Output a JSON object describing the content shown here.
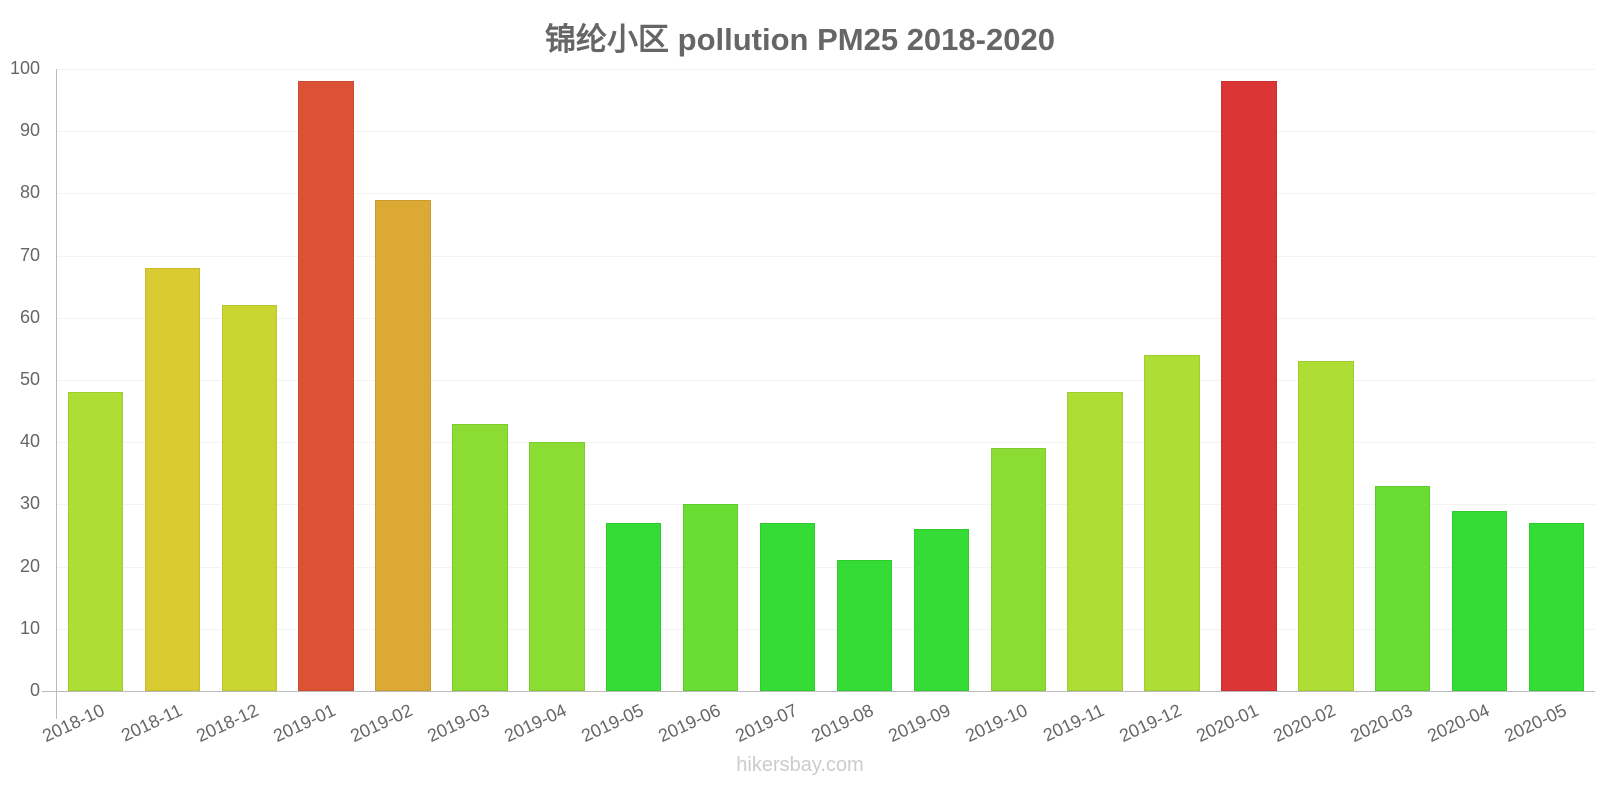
{
  "chart_data": {
    "type": "bar",
    "title": "锦纶小区 pollution PM25 2018-2020",
    "xlabel": "",
    "ylabel": "",
    "ylim": [
      0,
      100
    ],
    "yticks": [
      0,
      10,
      20,
      30,
      40,
      50,
      60,
      70,
      80,
      90,
      100
    ],
    "grid": true,
    "legend": null,
    "categories": [
      "2018-10",
      "2018-11",
      "2018-12",
      "2019-01",
      "2019-02",
      "2019-03",
      "2019-04",
      "2019-05",
      "2019-06",
      "2019-07",
      "2019-08",
      "2019-09",
      "2019-10",
      "2019-11",
      "2019-12",
      "2020-01",
      "2020-02",
      "2020-03",
      "2020-04",
      "2020-05"
    ],
    "values": [
      48,
      68,
      62,
      98,
      79,
      43,
      40,
      27,
      30,
      27,
      21,
      26,
      39,
      48,
      54,
      98,
      53,
      33,
      29,
      27
    ],
    "colors": [
      "#aede34",
      "#dbcb33",
      "#c9d632",
      "#dd5135",
      "#dca934",
      "#8bdd34",
      "#8bdd34",
      "#35dc36",
      "#69dd34",
      "#35dc36",
      "#35dc36",
      "#35dc36",
      "#8bdd34",
      "#aede34",
      "#aede34",
      "#dc3535",
      "#aede34",
      "#69dd34",
      "#35dc36",
      "#35dc36"
    ]
  },
  "footer": {
    "credit": "hikersbay.com"
  }
}
